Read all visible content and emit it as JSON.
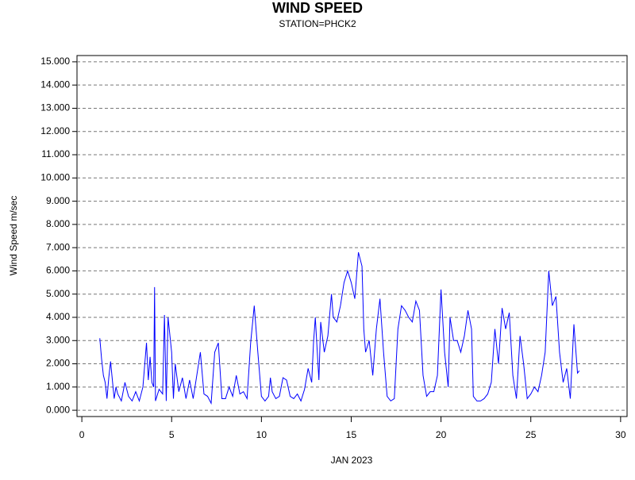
{
  "chart_data": {
    "type": "line",
    "title": "WIND SPEED",
    "subtitle": "STATION=PHCK2",
    "xlabel": "JAN 2023",
    "ylabel": "Wind Speed m/sec",
    "xlim": [
      -0.27,
      30.36
    ],
    "ylim": [
      -0.27,
      15.27
    ],
    "xticks": [
      0,
      5,
      10,
      15,
      20,
      25,
      30
    ],
    "yticks": [
      {
        "value": 0,
        "label": "0.000"
      },
      {
        "value": 1,
        "label": "1.000"
      },
      {
        "value": 2,
        "label": "2.000"
      },
      {
        "value": 3,
        "label": "3.000"
      },
      {
        "value": 4,
        "label": "4.000"
      },
      {
        "value": 5,
        "label": "5.000"
      },
      {
        "value": 6,
        "label": "6.000"
      },
      {
        "value": 7,
        "label": "7.000"
      },
      {
        "value": 8,
        "label": "8.000"
      },
      {
        "value": 9,
        "label": "9.000"
      },
      {
        "value": 10,
        "label": "10.000"
      },
      {
        "value": 11,
        "label": "11.000"
      },
      {
        "value": 12,
        "label": "12.000"
      },
      {
        "value": 13,
        "label": "13.000"
      },
      {
        "value": 14,
        "label": "14.000"
      },
      {
        "value": 15,
        "label": "15.000"
      }
    ],
    "grid": true,
    "x": [
      1.0,
      1.1,
      1.2,
      1.3,
      1.4,
      1.5,
      1.6,
      1.7,
      1.8,
      1.9,
      2.0,
      2.2,
      2.4,
      2.6,
      2.8,
      3.0,
      3.2,
      3.4,
      3.6,
      3.7,
      3.8,
      3.9,
      4.0,
      4.05,
      4.1,
      4.3,
      4.5,
      4.6,
      4.7,
      4.8,
      5.0,
      5.1,
      5.2,
      5.4,
      5.6,
      5.8,
      6.0,
      6.2,
      6.4,
      6.6,
      6.8,
      7.0,
      7.2,
      7.4,
      7.6,
      7.8,
      8.0,
      8.2,
      8.4,
      8.6,
      8.8,
      9.0,
      9.2,
      9.4,
      9.6,
      9.8,
      10.0,
      10.2,
      10.4,
      10.5,
      10.6,
      10.8,
      11.0,
      11.2,
      11.4,
      11.6,
      11.8,
      12.0,
      12.2,
      12.4,
      12.6,
      12.8,
      12.9,
      13.0,
      13.2,
      13.3,
      13.5,
      13.7,
      13.9,
      14.0,
      14.2,
      14.4,
      14.6,
      14.8,
      15.0,
      15.2,
      15.4,
      15.6,
      15.7,
      15.8,
      16.0,
      16.2,
      16.4,
      16.6,
      16.8,
      17.0,
      17.2,
      17.4,
      17.6,
      17.8,
      18.0,
      18.2,
      18.4,
      18.6,
      18.8,
      19.0,
      19.2,
      19.4,
      19.6,
      19.8,
      20.0,
      20.2,
      20.4,
      20.5,
      20.7,
      20.9,
      21.1,
      21.3,
      21.5,
      21.7,
      21.8,
      22.0,
      22.2,
      22.4,
      22.6,
      22.8,
      23.0,
      23.2,
      23.4,
      23.6,
      23.8,
      24.0,
      24.2,
      24.4,
      24.6,
      24.8,
      25.0,
      25.2,
      25.4,
      25.6,
      25.8,
      26.0,
      26.2,
      26.4,
      26.6,
      26.8,
      27.0,
      27.2,
      27.4,
      27.6,
      27.7
    ],
    "series": [
      {
        "color": "#0000ff",
        "values": [
          3.1,
          2.2,
          1.5,
          1.2,
          0.5,
          1.4,
          2.1,
          1.3,
          0.5,
          1.0,
          0.7,
          0.4,
          1.2,
          0.6,
          0.4,
          0.8,
          0.4,
          1.0,
          2.9,
          1.3,
          2.3,
          1.2,
          1.0,
          5.3,
          0.4,
          0.9,
          0.7,
          4.1,
          0.4,
          4.0,
          2.5,
          0.5,
          2.0,
          0.8,
          1.4,
          0.5,
          1.3,
          0.5,
          1.5,
          2.5,
          0.7,
          0.6,
          0.3,
          2.5,
          2.9,
          0.5,
          0.5,
          1.0,
          0.6,
          1.5,
          0.7,
          0.8,
          0.5,
          2.9,
          4.5,
          2.5,
          0.6,
          0.4,
          0.6,
          1.4,
          0.8,
          0.5,
          0.6,
          1.4,
          1.3,
          0.6,
          0.5,
          0.7,
          0.4,
          0.9,
          1.8,
          1.2,
          2.9,
          4.0,
          1.3,
          3.8,
          2.5,
          3.2,
          5.0,
          4.0,
          3.8,
          4.5,
          5.5,
          6.0,
          5.5,
          4.8,
          6.8,
          6.2,
          3.5,
          2.5,
          3.0,
          1.5,
          3.5,
          4.8,
          2.5,
          0.6,
          0.4,
          0.5,
          3.5,
          4.5,
          4.3,
          4.0,
          3.8,
          4.7,
          4.3,
          1.5,
          0.6,
          0.8,
          0.8,
          1.5,
          5.2,
          2.5,
          1.0,
          4.0,
          3.0,
          3.0,
          2.5,
          3.2,
          4.3,
          3.5,
          0.6,
          0.4,
          0.4,
          0.5,
          0.7,
          1.2,
          3.5,
          2.0,
          4.4,
          3.5,
          4.2,
          1.5,
          0.5,
          3.2,
          2.0,
          0.5,
          0.7,
          1.0,
          0.8,
          1.5,
          2.5,
          6.0,
          4.5,
          4.9,
          2.5,
          1.2,
          1.8,
          0.5,
          3.7,
          1.6,
          1.7
        ]
      }
    ]
  }
}
